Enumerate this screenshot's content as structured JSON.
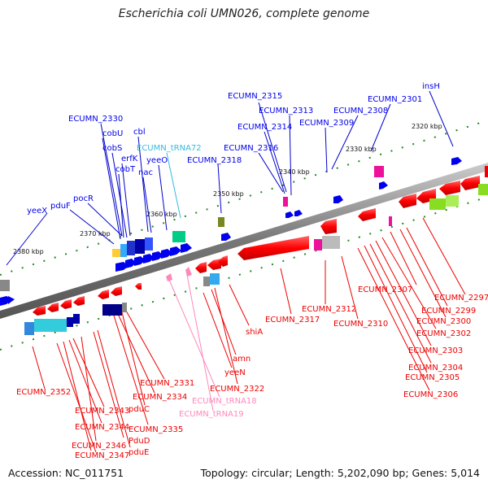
{
  "title": "Escherichia coli UMN026, complete genome",
  "footer": {
    "accession": "Accession: NC_011751",
    "summary": "Topology: circular; Length: 5,202,090 bp; Genes: 5,014"
  },
  "colors": {
    "forward_gene": "#0000ee",
    "reverse_gene": "#ee0000",
    "trna_upper": "#33bbdd",
    "trna_lower": "#ff88bb",
    "backbone": "#888888",
    "tick": "#228822"
  },
  "scale_labels": [
    "2320 kbp",
    "2330 kbp",
    "2340 kbp",
    "2350 kbp",
    "2360 kbp",
    "2370 kbp",
    "2380 kbp"
  ],
  "upper_labels": [
    {
      "text": "insH",
      "kind": "gene"
    },
    {
      "text": "ECUMN_2301",
      "kind": "gene"
    },
    {
      "text": "ECUMN_2308",
      "kind": "gene"
    },
    {
      "text": "ECUMN_2315",
      "kind": "gene"
    },
    {
      "text": "ECUMN_2313",
      "kind": "gene"
    },
    {
      "text": "ECUMN_2309",
      "kind": "gene"
    },
    {
      "text": "ECUMN_2314",
      "kind": "gene"
    },
    {
      "text": "ECUMN_2330",
      "kind": "gene"
    },
    {
      "text": "cbl",
      "kind": "gene"
    },
    {
      "text": "cobU",
      "kind": "gene"
    },
    {
      "text": "ECUMN_tRNA72",
      "kind": "trna"
    },
    {
      "text": "ECUMN_2316",
      "kind": "gene"
    },
    {
      "text": "cobS",
      "kind": "gene"
    },
    {
      "text": "erfK",
      "kind": "gene"
    },
    {
      "text": "yeeO",
      "kind": "gene"
    },
    {
      "text": "ECUMN_2318",
      "kind": "gene"
    },
    {
      "text": "cobT",
      "kind": "gene"
    },
    {
      "text": "nac",
      "kind": "gene"
    },
    {
      "text": "pocR",
      "kind": "gene"
    },
    {
      "text": "pduF",
      "kind": "gene"
    },
    {
      "text": "yeeX",
      "kind": "gene"
    }
  ],
  "lower_labels": [
    {
      "text": "ECUMN_2297",
      "kind": "gene"
    },
    {
      "text": "ECUMN_2307",
      "kind": "gene"
    },
    {
      "text": "ECUMN_2299",
      "kind": "gene"
    },
    {
      "text": "ECUMN_2312",
      "kind": "gene"
    },
    {
      "text": "ECUMN_2317",
      "kind": "gene"
    },
    {
      "text": "ECUMN_2300",
      "kind": "gene"
    },
    {
      "text": "ECUMN_2310",
      "kind": "gene"
    },
    {
      "text": "ECUMN_2302",
      "kind": "gene"
    },
    {
      "text": "shiA",
      "kind": "gene"
    },
    {
      "text": "ECUMN_2303",
      "kind": "gene"
    },
    {
      "text": "amn",
      "kind": "gene"
    },
    {
      "text": "ECUMN_2304",
      "kind": "gene"
    },
    {
      "text": "yeeN",
      "kind": "gene"
    },
    {
      "text": "ECUMN_2305",
      "kind": "gene"
    },
    {
      "text": "ECUMN_2331",
      "kind": "gene"
    },
    {
      "text": "ECUMN_2322",
      "kind": "gene"
    },
    {
      "text": "ECUMN_2352",
      "kind": "gene"
    },
    {
      "text": "ECUMN_2306",
      "kind": "gene"
    },
    {
      "text": "ECUMN_2334",
      "kind": "gene"
    },
    {
      "text": "ECUMN_tRNA18",
      "kind": "trna"
    },
    {
      "text": "ECUMN_2343",
      "kind": "gene"
    },
    {
      "text": "pduC",
      "kind": "gene"
    },
    {
      "text": "ECUMN_tRNA19",
      "kind": "trna"
    },
    {
      "text": "ECUMN_2344",
      "kind": "gene"
    },
    {
      "text": "ECUMN_2335",
      "kind": "gene"
    },
    {
      "text": "PduD",
      "kind": "gene"
    },
    {
      "text": "ECUMN_2346",
      "kind": "gene"
    },
    {
      "text": "pduE",
      "kind": "gene"
    },
    {
      "text": "ECUMN_2347",
      "kind": "gene"
    }
  ]
}
